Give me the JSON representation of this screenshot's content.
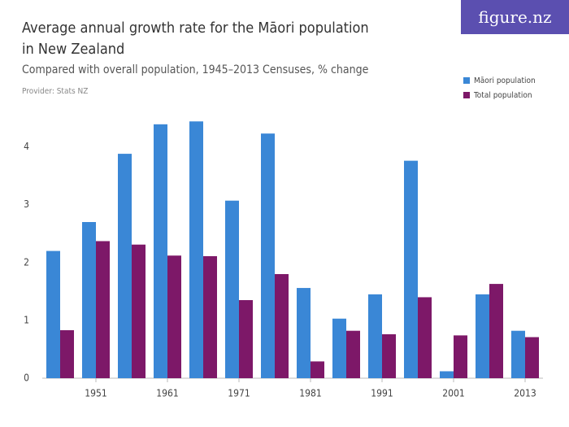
{
  "logo": "figure.nz",
  "chart_data": {
    "type": "bar",
    "title": "Average annual growth rate for the Māori population in New Zealand",
    "subtitle": "Compared with overall population, 1945–2013 Censuses, % change",
    "provider": "Provider: Stats NZ",
    "categories": [
      null,
      "1951",
      null,
      "1961",
      null,
      "1971",
      null,
      "1981",
      null,
      "1991",
      null,
      "2001",
      null,
      "2013"
    ],
    "series": [
      {
        "name": "Māori population",
        "color": "#3a87d6",
        "values": [
          2.2,
          2.7,
          3.88,
          4.39,
          4.44,
          3.07,
          4.23,
          1.56,
          1.03,
          1.45,
          3.76,
          0.12,
          1.45,
          0.82
        ]
      },
      {
        "name": "Total population",
        "color": "#7d1868",
        "values": [
          0.83,
          2.37,
          2.31,
          2.12,
          2.11,
          1.35,
          1.8,
          0.29,
          0.82,
          0.76,
          1.4,
          0.74,
          1.63,
          0.71
        ]
      }
    ],
    "ylim": [
      0,
      4.5
    ],
    "yticks": [
      0,
      1,
      2,
      3,
      4
    ],
    "grid": false,
    "legend": "top-right"
  }
}
